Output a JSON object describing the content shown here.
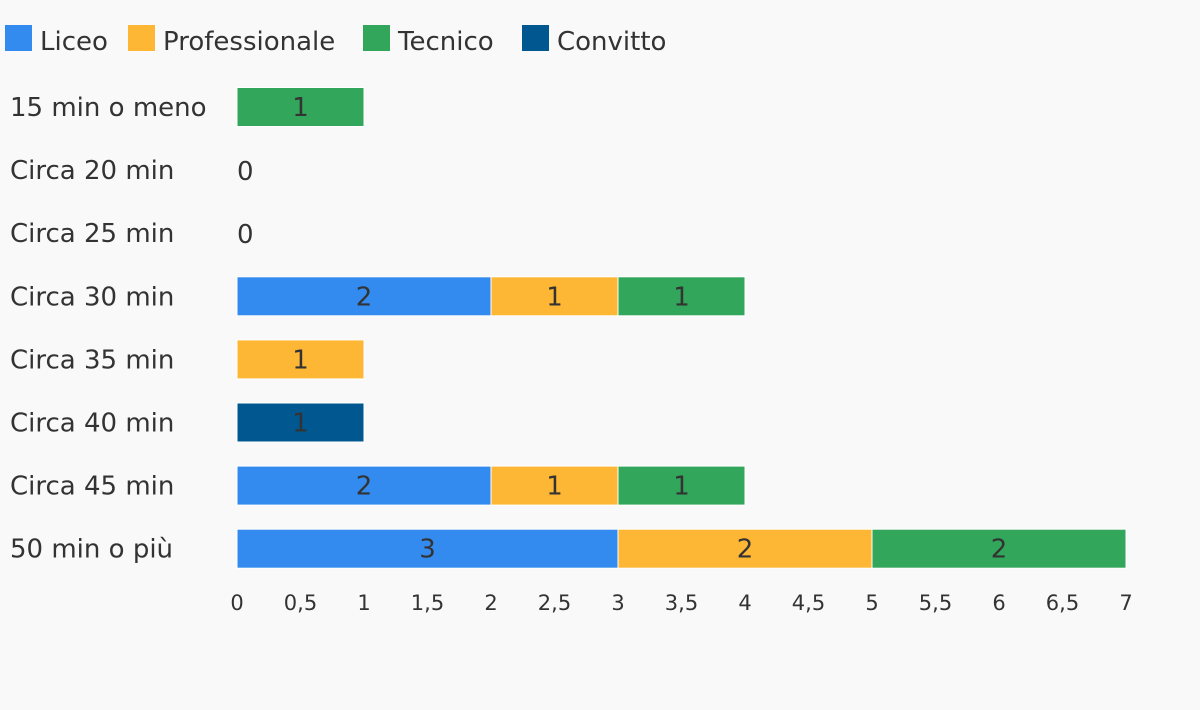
{
  "chart_data": {
    "type": "bar",
    "orientation": "horizontal",
    "stacked": true,
    "categories": [
      "15 min o meno",
      "Circa 20 min",
      "Circa 25 min",
      "Circa 30 min",
      "Circa 35 min",
      "Circa 40 min",
      "Circa 45 min",
      "50 min o più"
    ],
    "series": [
      {
        "name": "Liceo",
        "color": "#338bef",
        "values": [
          0,
          0,
          0,
          2,
          0,
          0,
          2,
          3
        ]
      },
      {
        "name": "Professionale",
        "color": "#feb735",
        "values": [
          0,
          0,
          0,
          1,
          1,
          0,
          1,
          2
        ]
      },
      {
        "name": "Tecnico",
        "color": "#32a65a",
        "values": [
          1,
          0,
          0,
          1,
          0,
          0,
          1,
          2
        ]
      },
      {
        "name": "Convitto",
        "color": "#015891",
        "values": [
          0,
          0,
          0,
          0,
          0,
          1,
          0,
          0
        ]
      }
    ],
    "xlim": [
      0,
      7
    ],
    "xticks": [
      "0",
      "0,5",
      "1",
      "1,5",
      "2",
      "2,5",
      "3",
      "3,5",
      "4",
      "4,5",
      "5",
      "5,5",
      "6",
      "6,5",
      "7"
    ],
    "legend_position": "top-left",
    "grid": false,
    "title": "",
    "xlabel": "",
    "ylabel": ""
  }
}
